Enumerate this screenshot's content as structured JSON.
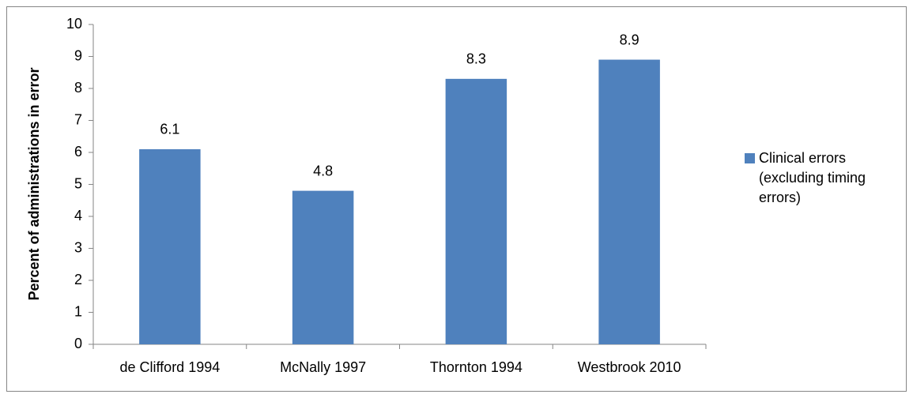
{
  "chart_data": {
    "type": "bar",
    "y_label": "Percent of administrations in error",
    "categories": [
      "de Clifford 1994",
      "McNally 1997",
      "Thornton 1994",
      "Westbrook 2010"
    ],
    "series": [
      {
        "name": "Clinical errors (excluding timing errors)",
        "color": "#4f81bd",
        "values": [
          6.1,
          4.8,
          8.3,
          8.9
        ]
      }
    ],
    "ylim": [
      0,
      10
    ],
    "yticks": [
      0,
      1,
      2,
      3,
      4,
      5,
      6,
      7,
      8,
      9,
      10
    ],
    "grid": false,
    "legend": "right",
    "data_labels": true
  }
}
